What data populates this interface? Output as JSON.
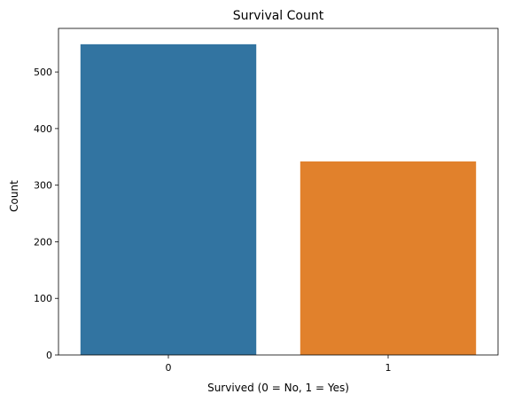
{
  "chart_data": {
    "type": "bar",
    "title": "Survival Count",
    "xlabel": "Survived (0 = No, 1 = Yes)",
    "ylabel": "Count",
    "categories": [
      "0",
      "1"
    ],
    "values": [
      549,
      342
    ],
    "colors": [
      "#3274a1",
      "#e1812c"
    ],
    "ylim": [
      0,
      577
    ],
    "yticks": [
      0,
      100,
      200,
      300,
      400,
      500
    ],
    "grid": false,
    "legend": "none"
  }
}
